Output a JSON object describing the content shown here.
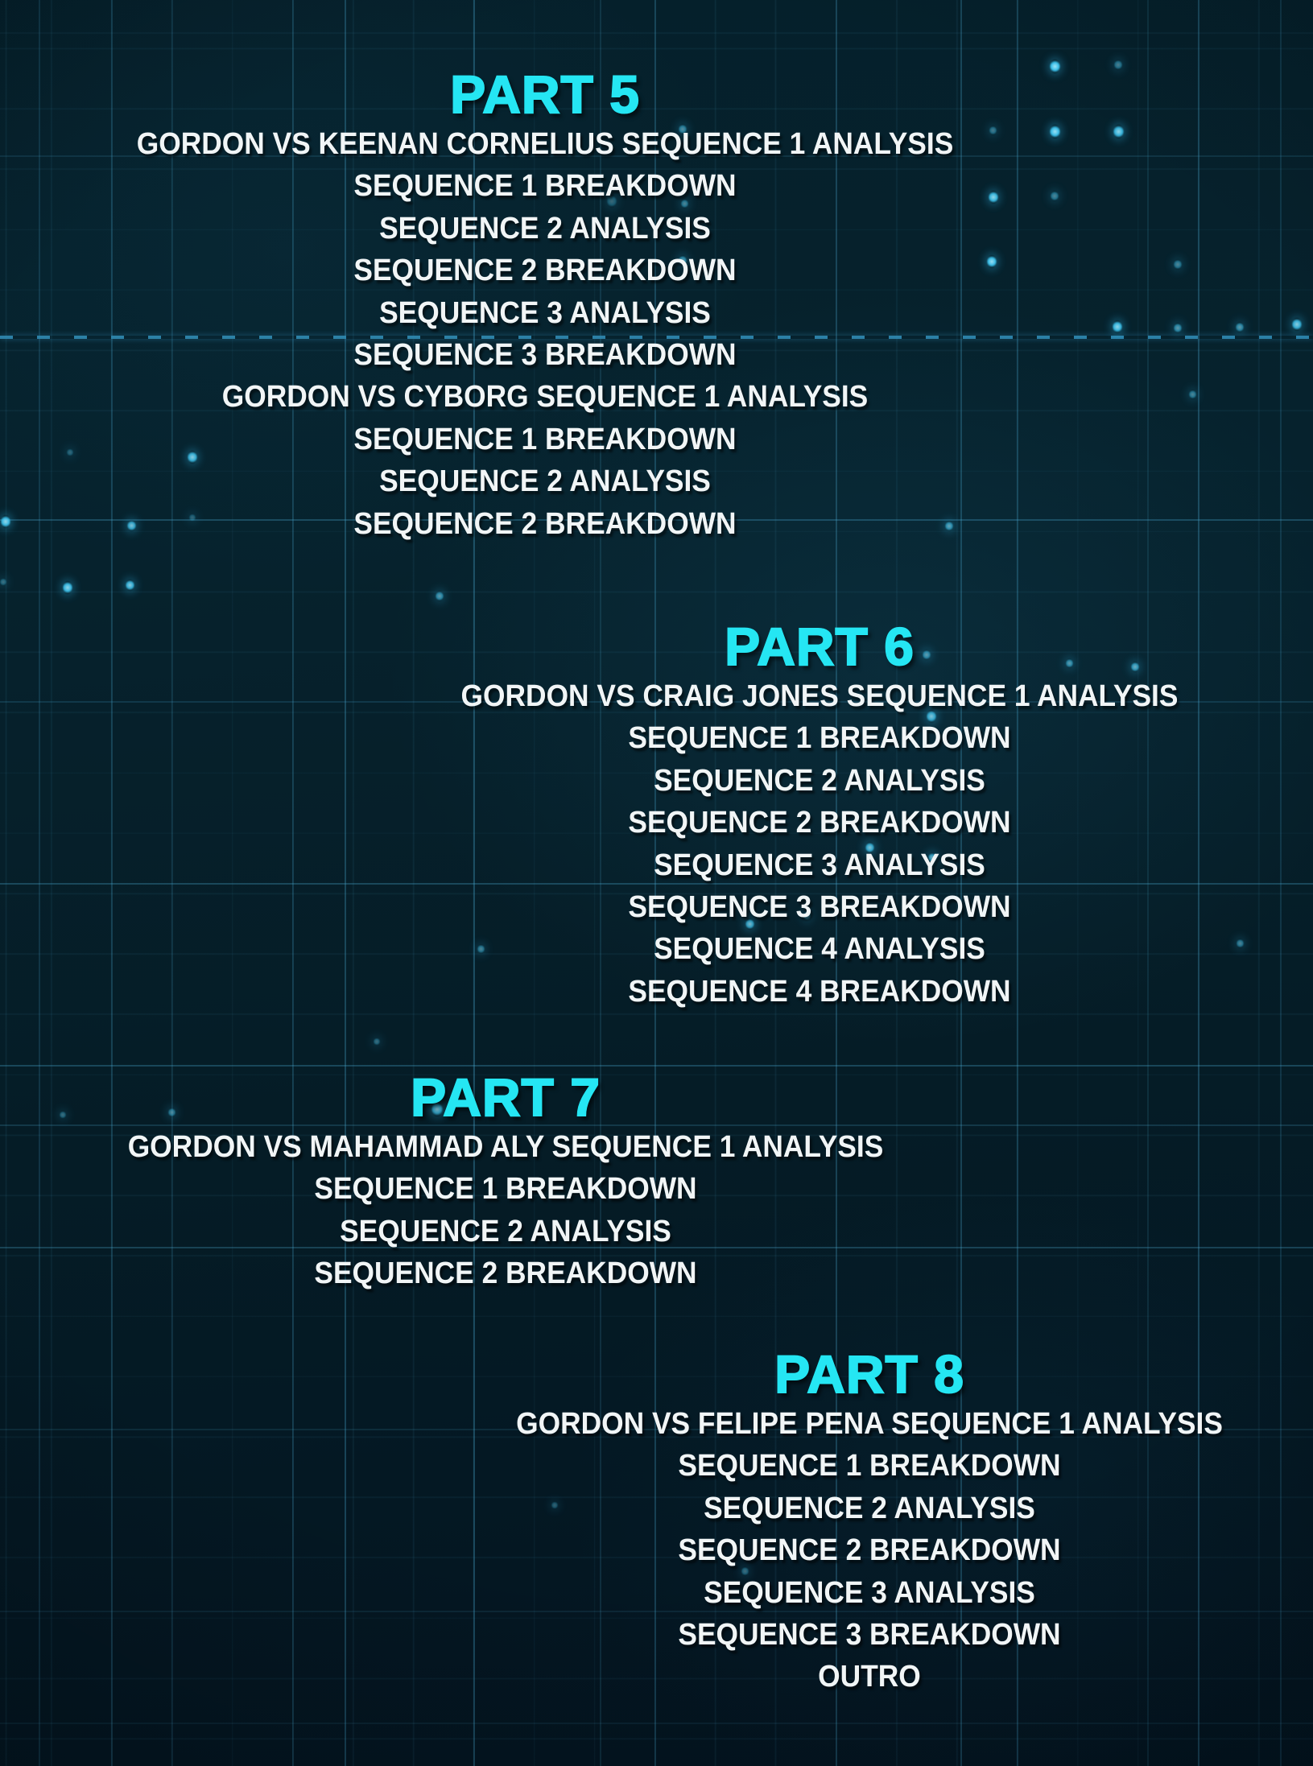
{
  "colors": {
    "background": "#061e28",
    "heading_text": "#25e6f3",
    "body_text": "#f1f5f6",
    "grid_line": "#4aa8d0",
    "dashed_line": "#2e86ad",
    "particle_glow": "#36c6f0"
  },
  "parts": [
    {
      "label": "PART 5",
      "items": [
        "GORDON VS KEENAN CORNELIUS SEQUENCE 1 ANALYSIS",
        "SEQUENCE 1 BREAKDOWN",
        "SEQUENCE 2 ANALYSIS",
        "SEQUENCE 2 BREAKDOWN",
        "SEQUENCE 3 ANALYSIS",
        "SEQUENCE 3 BREAKDOWN",
        "GORDON VS CYBORG SEQUENCE 1 ANALYSIS",
        "SEQUENCE 1 BREAKDOWN",
        "SEQUENCE 2 ANALYSIS",
        "SEQUENCE 2 BREAKDOWN"
      ]
    },
    {
      "label": "PART 6",
      "items": [
        "GORDON VS CRAIG JONES SEQUENCE 1 ANALYSIS",
        "SEQUENCE 1 BREAKDOWN",
        "SEQUENCE 2 ANALYSIS",
        "SEQUENCE 2 BREAKDOWN",
        "SEQUENCE 3 ANALYSIS",
        "SEQUENCE 3 BREAKDOWN",
        "SEQUENCE 4 ANALYSIS",
        "SEQUENCE 4 BREAKDOWN"
      ]
    },
    {
      "label": "PART 7",
      "items": [
        "GORDON VS MAHAMMAD ALY SEQUENCE 1 ANALYSIS",
        "SEQUENCE 1 BREAKDOWN",
        "SEQUENCE 2 ANALYSIS",
        "SEQUENCE 2 BREAKDOWN"
      ]
    },
    {
      "label": "PART 8",
      "items": [
        "GORDON VS FELIPE PENA SEQUENCE 1 ANALYSIS",
        "SEQUENCE 1 BREAKDOWN",
        "SEQUENCE 2 ANALYSIS",
        "SEQUENCE 2 BREAKDOWN",
        "SEQUENCE 3 ANALYSIS",
        "SEQUENCE 3 BREAKDOWN",
        "OUTRO"
      ]
    }
  ]
}
